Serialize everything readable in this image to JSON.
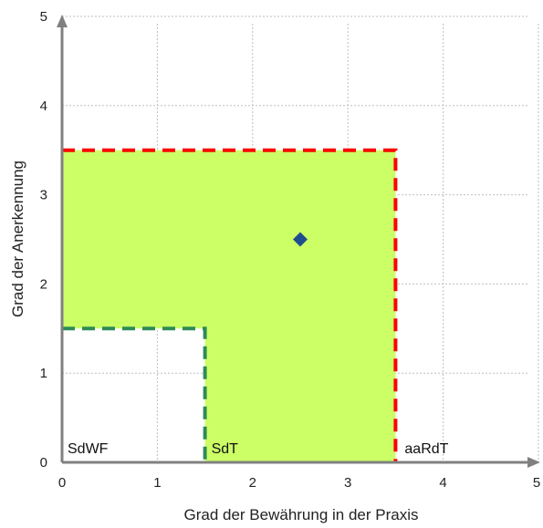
{
  "chart_data": {
    "type": "scatter",
    "title": "",
    "xlabel": "Grad der Bewährung in der Praxis",
    "ylabel": "Grad der Anerkennung",
    "xlim": [
      0,
      5
    ],
    "ylim": [
      0,
      5
    ],
    "xticks": [
      "0",
      "1",
      "2",
      "3",
      "4",
      "5"
    ],
    "yticks": [
      "0",
      "1",
      "2",
      "3",
      "4",
      "5"
    ],
    "grid": true,
    "points": [
      {
        "x": 2.5,
        "y": 2.5,
        "marker": "diamond",
        "color": "#1f4e8c"
      }
    ],
    "regions": [
      {
        "label": "SdWF",
        "x": [
          0,
          1.5
        ],
        "y": [
          0,
          1.5
        ],
        "fill": "none",
        "border": "#2e8b57",
        "border_style": "dashed"
      },
      {
        "label": "SdT",
        "x": [
          0,
          3.5
        ],
        "y": [
          0,
          3.5
        ],
        "fill": "#ccff66",
        "border": "#ff0000",
        "border_style": "dashed"
      },
      {
        "label": "aaRdT",
        "x": [
          3.5,
          5
        ],
        "y": [
          0,
          5
        ],
        "fill": "none"
      }
    ],
    "colors": {
      "axis": "#808080",
      "grid": "#bfbfbf",
      "sdt_fill": "#ccff66",
      "red_border": "#ff0000",
      "green_border": "#2e8b57",
      "point": "#1f4e8c"
    }
  }
}
